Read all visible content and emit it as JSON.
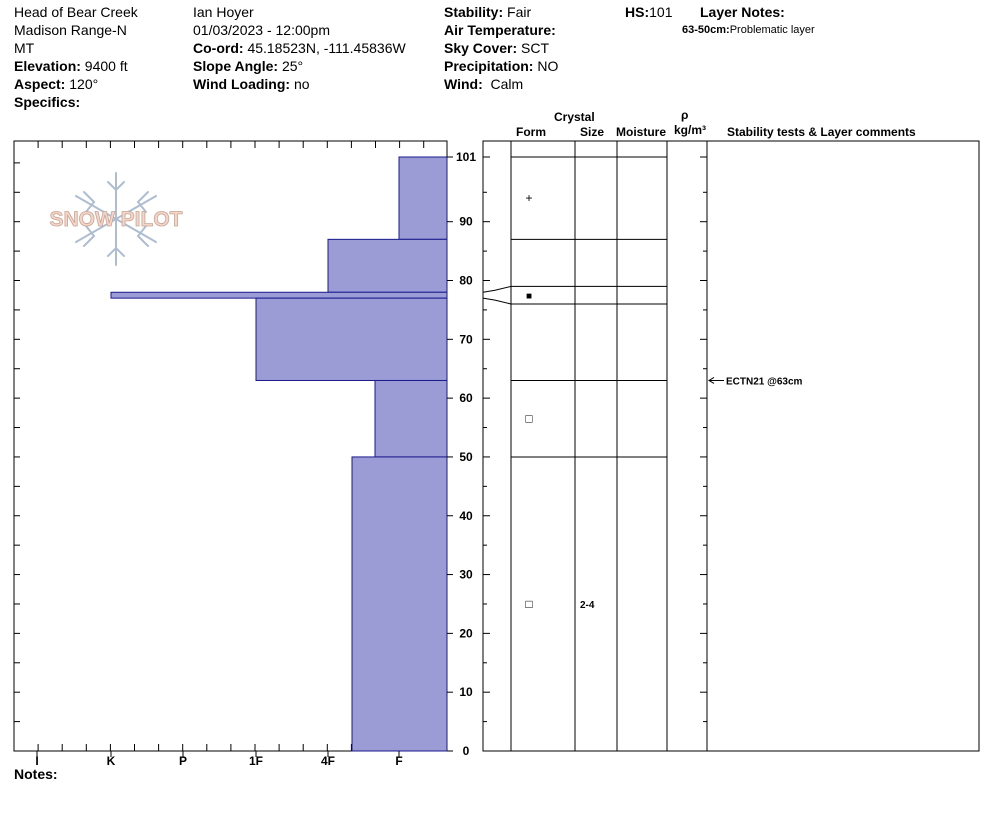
{
  "header": {
    "location": "Head of Bear Creek",
    "range": "Madison Range-N",
    "state": "MT",
    "elevation_label": "Elevation:",
    "elevation": "9400 ft",
    "aspect_label": "Aspect:",
    "aspect": "120°",
    "specifics_label": "Specifics:",
    "observer": "Ian Hoyer",
    "datetime": "01/03/2023 - 12:00pm",
    "coord_label": "Co-ord:",
    "coord": "45.18523N, -111.45836W",
    "slope_label": "Slope Angle:",
    "slope": "25°",
    "wind_loading_label": "Wind Loading:",
    "wind_loading": "no",
    "stability_label": "Stability:",
    "stability": "Fair",
    "air_temp_label": "Air Temperature:",
    "sky_label": "Sky Cover:",
    "sky": "SCT",
    "precip_label": "Precipitation:",
    "precip": "NO",
    "wind_label": "Wind:",
    "wind": "Calm",
    "hs_label": "HS:",
    "hs": "101",
    "layer_notes_label": "Layer Notes:",
    "layer_note_range": "63-50cm:",
    "layer_note_text": "Problematic layer"
  },
  "logo_text": "SNOW PILOT",
  "columns": {
    "crystal": "Crystal",
    "form": "Form",
    "size": "Size",
    "moisture": "Moisture",
    "rho": "ρ",
    "density_unit": "kg/m³",
    "comments": "Stability tests & Layer comments"
  },
  "notes_label": "Notes:",
  "colors": {
    "hardness_fill": "#9b9bd6",
    "hardness_stroke": "#1a1a8c"
  },
  "chart_data": {
    "type": "snow-profile",
    "y_ticks": [
      0,
      10,
      20,
      30,
      40,
      50,
      60,
      70,
      80,
      90,
      101
    ],
    "y_range": [
      0,
      101
    ],
    "hardness_ticks": [
      "I",
      "K",
      "P",
      "1F",
      "4F",
      "F"
    ],
    "hardness_layers": [
      {
        "top": 101,
        "bottom": 87,
        "hardness": "F"
      },
      {
        "top": 87,
        "bottom": 78,
        "hardness": "4F"
      },
      {
        "top": 78,
        "bottom": 77,
        "hardness": "K"
      },
      {
        "top": 77,
        "bottom": 63,
        "hardness": "1F"
      },
      {
        "top": 63,
        "bottom": 50,
        "hardness": "F+"
      },
      {
        "top": 50,
        "bottom": 0,
        "hardness": "4F-"
      }
    ],
    "layer_boundaries": [
      101,
      87,
      79,
      76,
      63,
      50
    ],
    "crystals": [
      {
        "height": 94,
        "form": "+",
        "size": ""
      },
      {
        "height": 77.5,
        "form": "■",
        "size": ""
      },
      {
        "height": 56.5,
        "form": "□",
        "size": ""
      },
      {
        "height": 25,
        "form": "□",
        "size": "2-4"
      }
    ],
    "stability_tests": [
      {
        "height": 63,
        "text": "ECTN21 @63cm"
      }
    ]
  }
}
